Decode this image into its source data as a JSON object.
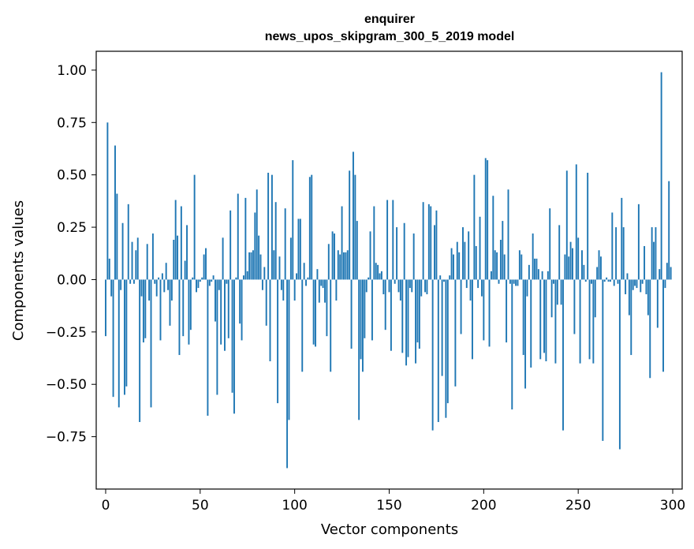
{
  "chart_data": {
    "type": "bar",
    "title": "enquirer",
    "subtitle": "news_upos_skipgram_300_5_2019 model",
    "xlabel": "Vector components",
    "ylabel": "Components values",
    "xlim": [
      -5,
      305
    ],
    "ylim": [
      -1.0,
      1.09
    ],
    "xticks": [
      0,
      50,
      100,
      150,
      200,
      250,
      300
    ],
    "yticks": [
      -0.75,
      -0.5,
      -0.25,
      0.0,
      0.25,
      0.5,
      0.75,
      1.0
    ],
    "xtick_labels": [
      "0",
      "50",
      "100",
      "150",
      "200",
      "250",
      "300"
    ],
    "ytick_labels": [
      "−0.75",
      "−0.50",
      "−0.25",
      "0.00",
      "0.25",
      "0.50",
      "0.75",
      "1.00"
    ],
    "color": "#1f77b4",
    "values": [
      -0.27,
      0.75,
      0.1,
      -0.08,
      -0.56,
      0.64,
      0.41,
      -0.61,
      -0.05,
      0.27,
      -0.55,
      -0.51,
      0.36,
      -0.02,
      0.18,
      -0.02,
      0.14,
      0.2,
      -0.68,
      -0.08,
      -0.3,
      -0.28,
      0.17,
      -0.1,
      -0.61,
      0.22,
      -0.02,
      -0.08,
      0.01,
      -0.29,
      0.03,
      -0.06,
      0.08,
      -0.05,
      -0.22,
      -0.1,
      0.19,
      0.38,
      0.21,
      -0.36,
      0.35,
      -0.27,
      0.09,
      0.26,
      -0.31,
      -0.24,
      0.01,
      0.5,
      -0.06,
      -0.04,
      -0.01,
      0.01,
      0.12,
      0.15,
      -0.65,
      -0.03,
      -0.01,
      0.02,
      -0.2,
      -0.55,
      -0.05,
      -0.31,
      0.2,
      -0.34,
      -0.02,
      -0.28,
      0.33,
      -0.54,
      -0.64,
      0.01,
      0.41,
      -0.21,
      -0.29,
      0.02,
      0.39,
      0.04,
      0.13,
      0.13,
      0.14,
      0.32,
      0.43,
      0.21,
      0.12,
      -0.05,
      0.06,
      -0.22,
      0.51,
      -0.39,
      0.5,
      0.14,
      0.37,
      -0.59,
      0.11,
      -0.05,
      -0.1,
      0.34,
      -0.9,
      -0.67,
      0.2,
      0.57,
      -0.1,
      0.03,
      0.29,
      0.29,
      -0.44,
      0.08,
      -0.03,
      0.01,
      0.49,
      0.5,
      -0.31,
      -0.32,
      0.05,
      -0.11,
      -0.03,
      -0.04,
      -0.11,
      -0.27,
      0.17,
      -0.44,
      0.23,
      0.22,
      -0.1,
      0.14,
      0.12,
      0.35,
      0.13,
      0.13,
      0.14,
      0.52,
      -0.33,
      0.61,
      0.5,
      0.28,
      -0.67,
      -0.38,
      -0.44,
      -0.28,
      -0.06,
      0.01,
      0.23,
      -0.29,
      0.35,
      0.08,
      0.07,
      0.03,
      0.04,
      -0.07,
      -0.24,
      0.38,
      -0.06,
      -0.34,
      0.38,
      -0.02,
      0.25,
      -0.06,
      -0.1,
      -0.35,
      0.27,
      -0.41,
      -0.37,
      -0.04,
      -0.06,
      0.22,
      -0.4,
      -0.3,
      -0.33,
      -0.08,
      0.37,
      -0.06,
      -0.07,
      0.36,
      0.35,
      -0.72,
      0.26,
      0.33,
      -0.68,
      0.02,
      -0.46,
      -0.01,
      -0.66,
      -0.59,
      0.02,
      0.15,
      0.12,
      -0.51,
      0.18,
      0.13,
      -0.26,
      0.25,
      0.18,
      -0.04,
      0.23,
      -0.1,
      -0.38,
      0.5,
      0.16,
      -0.04,
      0.3,
      -0.08,
      -0.29,
      0.58,
      0.57,
      -0.32,
      0.04,
      0.4,
      0.14,
      0.13,
      -0.02,
      0.19,
      0.28,
      0.12,
      -0.3,
      0.43,
      -0.02,
      -0.62,
      -0.02,
      -0.03,
      -0.03,
      0.14,
      0.12,
      -0.36,
      -0.52,
      -0.08,
      0.07,
      -0.42,
      0.22,
      0.1,
      0.1,
      0.05,
      -0.38,
      0.04,
      -0.35,
      -0.39,
      0.04,
      0.34,
      -0.18,
      -0.02,
      -0.4,
      -0.12,
      0.26,
      -0.12,
      -0.72,
      0.12,
      0.52,
      0.11,
      0.18,
      0.15,
      -0.26,
      0.55,
      0.2,
      -0.4,
      0.14,
      0.07,
      -0.01,
      0.51,
      -0.38,
      -0.02,
      -0.4,
      -0.18,
      0.06,
      0.14,
      0.11,
      -0.77,
      -0.01,
      0.01,
      -0.01,
      -0.01,
      0.32,
      -0.03,
      0.25,
      -0.02,
      -0.81,
      0.39,
      0.25,
      -0.07,
      0.03,
      -0.17,
      -0.36,
      -0.05,
      -0.03,
      -0.04,
      0.36,
      -0.06,
      -0.02,
      0.16,
      -0.07,
      -0.17,
      -0.47,
      0.25,
      0.18,
      0.25,
      -0.23,
      0.05,
      0.99,
      -0.44,
      -0.04,
      0.08,
      0.47,
      0.06
    ]
  }
}
